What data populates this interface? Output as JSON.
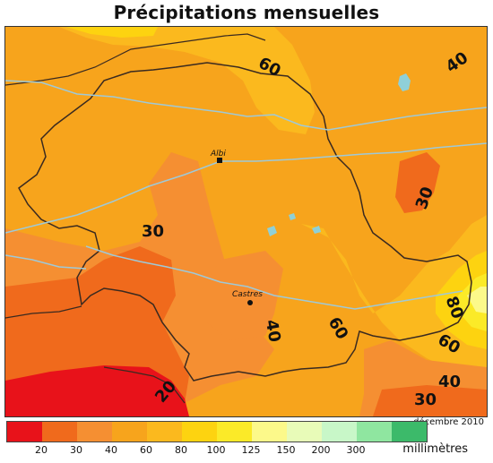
{
  "title": "Précipitations mensuelles",
  "date": "décembre 2010",
  "unit": "millimètres",
  "legend": {
    "colors": [
      "#e8121a",
      "#f06a1c",
      "#f58f32",
      "#f7a41c",
      "#fbb91e",
      "#fdd310",
      "#fbea28",
      "#fcf98a",
      "#e8fbb8",
      "#c8f7c8",
      "#8fe6a0",
      "#3cba6a"
    ],
    "ticks": [
      "20",
      "30",
      "40",
      "60",
      "80",
      "100",
      "125",
      "150",
      "200",
      "300"
    ]
  },
  "places": [
    {
      "name": "Albi"
    },
    {
      "name": "Castres"
    }
  ],
  "contours": [
    {
      "label": "60"
    },
    {
      "label": "40"
    },
    {
      "label": "30"
    },
    {
      "label": "30"
    },
    {
      "label": "40"
    },
    {
      "label": "60"
    },
    {
      "label": "80"
    },
    {
      "label": "60"
    },
    {
      "label": "40"
    },
    {
      "label": "30"
    },
    {
      "label": "20"
    }
  ]
}
